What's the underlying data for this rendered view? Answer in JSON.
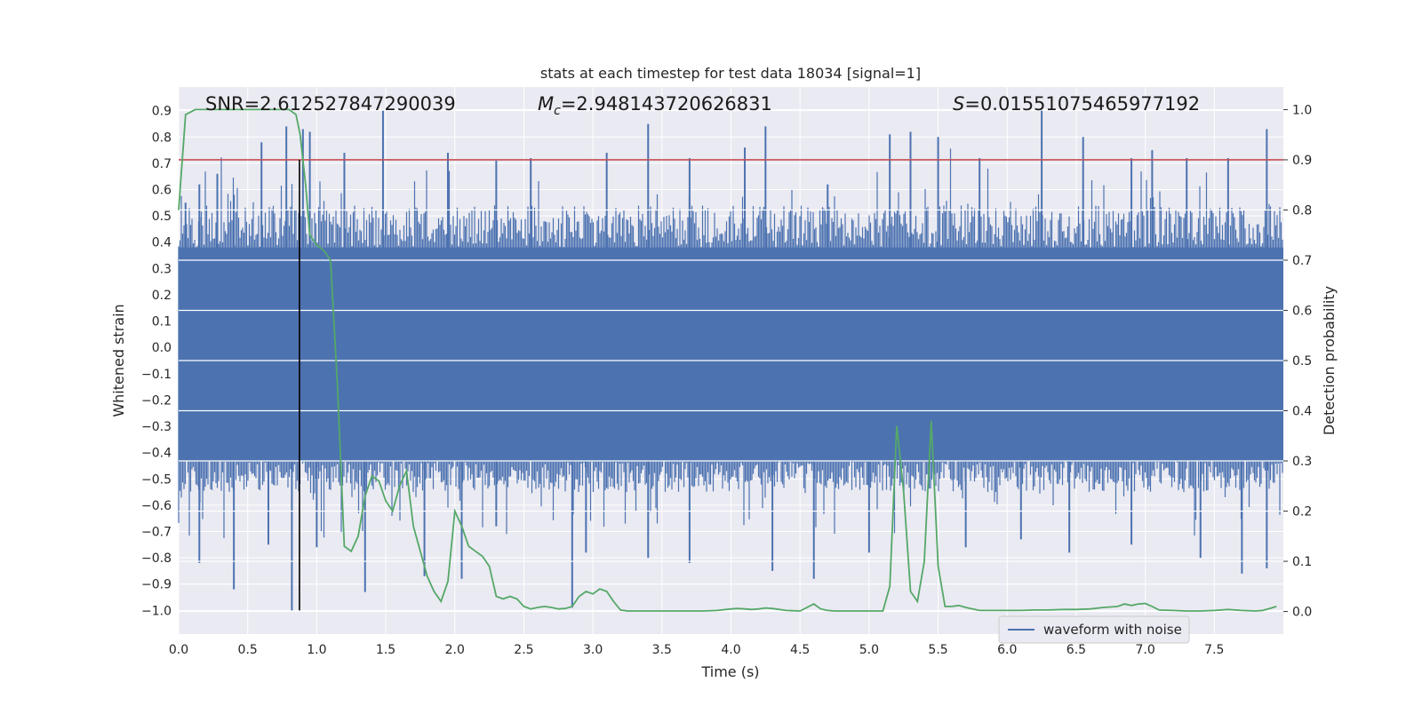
{
  "chart_data": {
    "type": "line",
    "title": "stats at each timestep for test data 18034 [signal=1]",
    "xlabel": "Time (s)",
    "ylabel": "Whitened strain",
    "y2label": "Detection probability",
    "xlim": [
      0.0,
      8.0
    ],
    "ylim": [
      -1.09,
      0.99
    ],
    "y2lim": [
      -0.045,
      1.045
    ],
    "xticks": [
      0.0,
      0.5,
      1.0,
      1.5,
      2.0,
      2.5,
      3.0,
      3.5,
      4.0,
      4.5,
      5.0,
      5.5,
      6.0,
      6.5,
      7.0,
      7.5
    ],
    "yticks": [
      0.9,
      0.8,
      0.7,
      0.6,
      0.5,
      0.4,
      0.3,
      0.2,
      0.1,
      0.0,
      -0.1,
      -0.2,
      -0.3,
      -0.4,
      -0.5,
      -0.6,
      -0.7,
      -0.8,
      -0.9,
      -1.0
    ],
    "y2ticks": [
      1.0,
      0.9,
      0.8,
      0.7,
      0.6,
      0.5,
      0.4,
      0.3,
      0.2,
      0.1,
      0.0
    ],
    "annotations": {
      "snr": "SNR=2.612527847290039",
      "mc_prefix": "M",
      "mc_sub": "c",
      "mc_value": "=2.948143720626831",
      "s_prefix": "S",
      "s_value": "=0.01551075465977192"
    },
    "threshold": {
      "axis": "right",
      "value": 0.9,
      "color": "#c44e52"
    },
    "marker_line": {
      "x": 0.875,
      "y_from": -1.0,
      "y_to": 0.9,
      "color": "#000000"
    },
    "waveform": {
      "name": "waveform with noise",
      "color": "#4c72b0",
      "description": "dense noisy whitened strain, core band approx -0.4 to 0.4 with spikes up to 0.9 and down to -1.0",
      "core_band": [
        -0.43,
        0.38
      ],
      "upper_spikes": [
        [
          0.05,
          0.55
        ],
        [
          0.15,
          0.62
        ],
        [
          0.28,
          0.66
        ],
        [
          0.4,
          0.58
        ],
        [
          0.6,
          0.78
        ],
        [
          0.78,
          0.84
        ],
        [
          0.9,
          0.83
        ],
        [
          0.95,
          0.82
        ],
        [
          1.2,
          0.74
        ],
        [
          1.48,
          0.9
        ],
        [
          1.95,
          0.74
        ],
        [
          2.3,
          0.71
        ],
        [
          2.55,
          0.72
        ],
        [
          3.1,
          0.74
        ],
        [
          3.4,
          0.85
        ],
        [
          3.7,
          0.72
        ],
        [
          4.1,
          0.76
        ],
        [
          4.25,
          0.84
        ],
        [
          4.7,
          0.62
        ],
        [
          5.15,
          0.81
        ],
        [
          5.3,
          0.82
        ],
        [
          5.5,
          0.8
        ],
        [
          5.8,
          0.72
        ],
        [
          6.25,
          0.9
        ],
        [
          6.55,
          0.8
        ],
        [
          6.9,
          0.72
        ],
        [
          7.05,
          0.75
        ],
        [
          7.3,
          0.72
        ],
        [
          7.6,
          0.72
        ],
        [
          7.88,
          0.83
        ]
      ],
      "lower_spikes": [
        [
          0.15,
          -0.82
        ],
        [
          0.4,
          -0.92
        ],
        [
          0.65,
          -0.75
        ],
        [
          0.82,
          -1.0
        ],
        [
          1.0,
          -0.76
        ],
        [
          1.35,
          -0.93
        ],
        [
          1.78,
          -0.87
        ],
        [
          2.05,
          -0.88
        ],
        [
          2.3,
          -0.68
        ],
        [
          2.85,
          -0.99
        ],
        [
          2.95,
          -0.78
        ],
        [
          3.4,
          -0.8
        ],
        [
          3.7,
          -0.82
        ],
        [
          4.3,
          -0.85
        ],
        [
          4.6,
          -0.88
        ],
        [
          5.0,
          -0.78
        ],
        [
          5.7,
          -0.76
        ],
        [
          6.1,
          -0.73
        ],
        [
          6.45,
          -0.78
        ],
        [
          6.9,
          -0.75
        ],
        [
          7.4,
          -0.8
        ],
        [
          7.7,
          -0.86
        ],
        [
          7.88,
          -0.84
        ]
      ]
    },
    "probability": {
      "name": "Detection probability",
      "color": "#55a868",
      "x": [
        0.0,
        0.05,
        0.12,
        0.2,
        0.3,
        0.5,
        0.7,
        0.8,
        0.85,
        0.88,
        0.92,
        0.95,
        1.0,
        1.05,
        1.1,
        1.15,
        1.2,
        1.25,
        1.3,
        1.35,
        1.4,
        1.45,
        1.5,
        1.55,
        1.6,
        1.65,
        1.7,
        1.75,
        1.8,
        1.85,
        1.9,
        1.95,
        2.0,
        2.05,
        2.1,
        2.15,
        2.2,
        2.25,
        2.3,
        2.35,
        2.4,
        2.45,
        2.5,
        2.55,
        2.6,
        2.65,
        2.7,
        2.75,
        2.8,
        2.85,
        2.9,
        2.95,
        3.0,
        3.05,
        3.1,
        3.15,
        3.2,
        3.25,
        3.3,
        3.35,
        3.4,
        3.5,
        3.6,
        3.7,
        3.8,
        3.9,
        4.0,
        4.05,
        4.1,
        4.15,
        4.2,
        4.25,
        4.3,
        4.4,
        4.5,
        4.6,
        4.65,
        4.7,
        4.75,
        4.8,
        4.9,
        5.0,
        5.1,
        5.15,
        5.2,
        5.25,
        5.3,
        5.35,
        5.4,
        5.45,
        5.5,
        5.55,
        5.6,
        5.65,
        5.7,
        5.75,
        5.8,
        5.9,
        6.0,
        6.1,
        6.2,
        6.3,
        6.4,
        6.5,
        6.6,
        6.7,
        6.8,
        6.85,
        6.9,
        6.95,
        7.0,
        7.05,
        7.1,
        7.2,
        7.3,
        7.4,
        7.5,
        7.6,
        7.7,
        7.8,
        7.85,
        7.9,
        7.95
      ],
      "y": [
        0.8,
        0.99,
        1.0,
        1.0,
        1.0,
        1.0,
        1.0,
        1.0,
        0.99,
        0.95,
        0.85,
        0.75,
        0.73,
        0.72,
        0.7,
        0.45,
        0.13,
        0.12,
        0.15,
        0.23,
        0.27,
        0.26,
        0.22,
        0.2,
        0.25,
        0.28,
        0.17,
        0.12,
        0.07,
        0.04,
        0.02,
        0.06,
        0.2,
        0.17,
        0.13,
        0.12,
        0.11,
        0.09,
        0.03,
        0.025,
        0.03,
        0.025,
        0.01,
        0.005,
        0.008,
        0.01,
        0.008,
        0.005,
        0.006,
        0.01,
        0.03,
        0.04,
        0.035,
        0.045,
        0.04,
        0.02,
        0.003,
        0.001,
        0.001,
        0.001,
        0.001,
        0.001,
        0.001,
        0.001,
        0.001,
        0.002,
        0.005,
        0.006,
        0.005,
        0.004,
        0.005,
        0.007,
        0.006,
        0.002,
        0.001,
        0.015,
        0.005,
        0.002,
        0.001,
        0.001,
        0.001,
        0.001,
        0.001,
        0.05,
        0.37,
        0.24,
        0.04,
        0.02,
        0.1,
        0.38,
        0.09,
        0.01,
        0.01,
        0.012,
        0.008,
        0.005,
        0.002,
        0.002,
        0.002,
        0.002,
        0.003,
        0.003,
        0.004,
        0.004,
        0.005,
        0.008,
        0.01,
        0.015,
        0.012,
        0.015,
        0.016,
        0.01,
        0.003,
        0.002,
        0.001,
        0.001,
        0.002,
        0.004,
        0.002,
        0.001,
        0.002,
        0.006,
        0.01
      ]
    },
    "legend": {
      "location": "lower-center-right",
      "entries": [
        "waveform with noise"
      ]
    },
    "grid": true,
    "background": "#eaeaf2"
  }
}
